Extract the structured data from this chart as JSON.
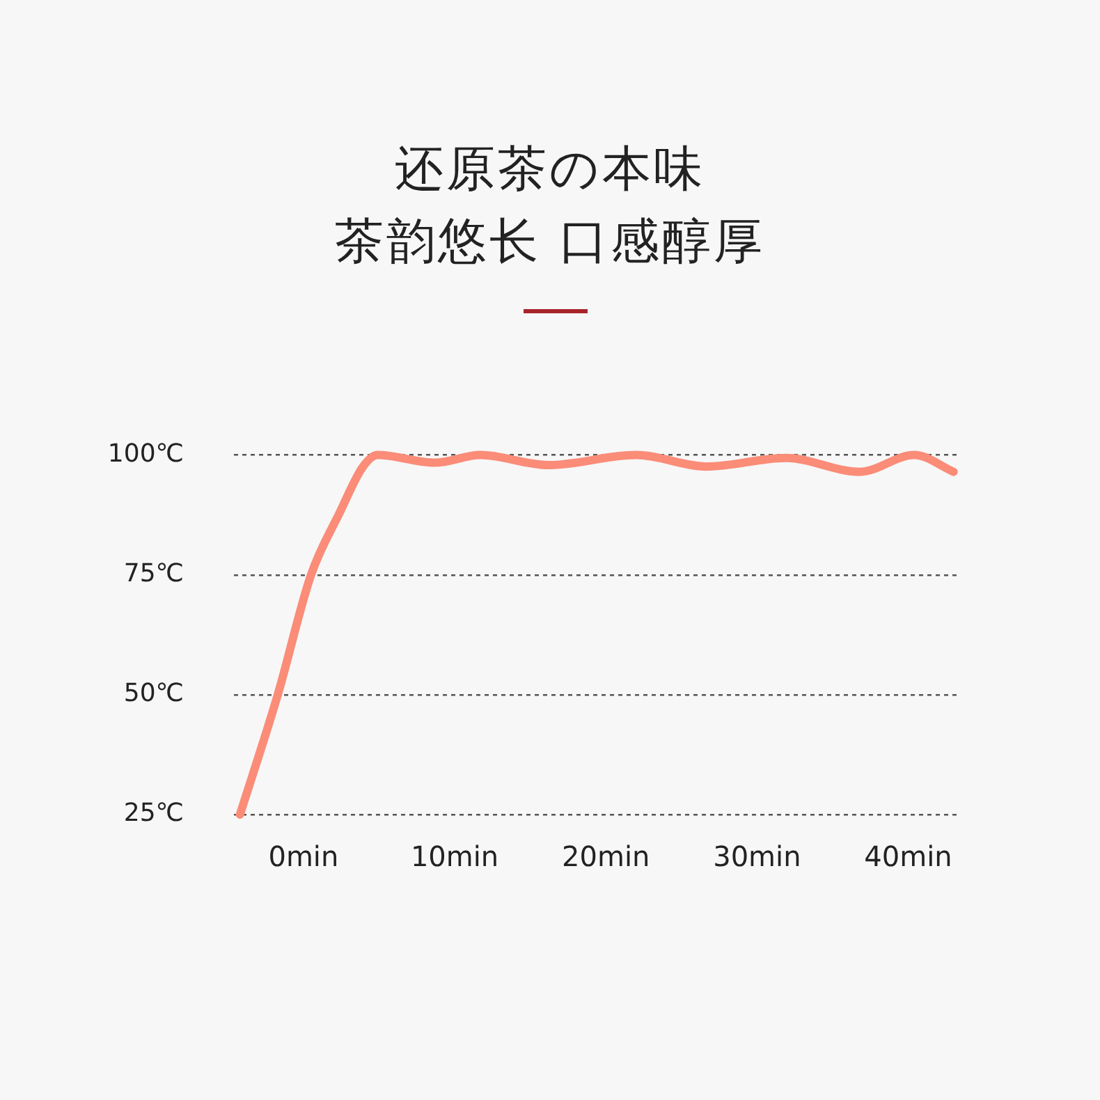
{
  "chart_data": {
    "type": "line",
    "title": "还原茶の本味",
    "subtitle": "茶韵悠长 口感醇厚",
    "x": [
      -4.2,
      -1.7,
      0.5,
      2.4,
      3.9,
      4.9,
      8.7,
      11.7,
      16.2,
      22,
      26.7,
      31.9,
      36.8,
      40.4,
      43
    ],
    "series": [
      {
        "color": "#fa8c78",
        "values": [
          25,
          50,
          75,
          88,
          97.4,
          100,
          98.4,
          100,
          97.9,
          100,
          97.6,
          99.4,
          96.5,
          100,
          96.5
        ]
      }
    ],
    "xlim": [
      -4.6,
      43.2
    ],
    "ylim": [
      25,
      100
    ],
    "xticks": [
      {
        "value": 0,
        "label": "0min"
      },
      {
        "value": 10,
        "label": "10min"
      },
      {
        "value": 20,
        "label": "20min"
      },
      {
        "value": 30,
        "label": "30min"
      },
      {
        "value": 40,
        "label": "40min"
      }
    ],
    "yticks": [
      {
        "value": 25,
        "label": "25℃"
      },
      {
        "value": 50,
        "label": "50℃"
      },
      {
        "value": 75,
        "label": "75℃"
      },
      {
        "value": 100,
        "label": "100℃"
      }
    ],
    "grid": "y",
    "marker": "none",
    "legend": false
  }
}
